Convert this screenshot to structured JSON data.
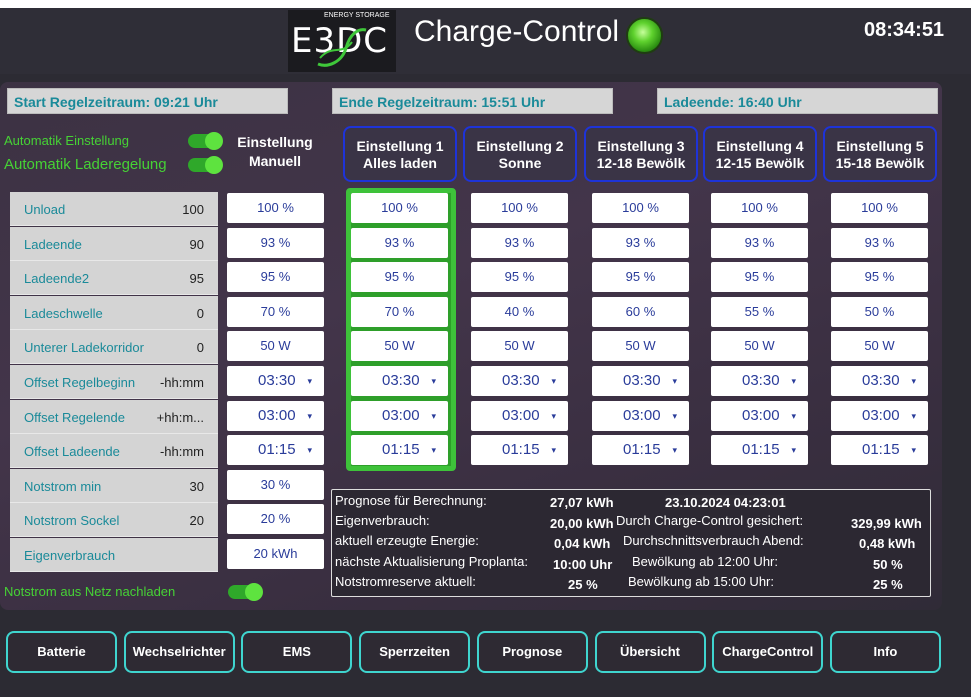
{
  "header": {
    "logo_text": "E3DC",
    "logo_sub": "ENERGY STORAGE",
    "title": "Charge-Control",
    "clock": "08:34:51"
  },
  "status_bar": {
    "start": "Start Regelzeitraum: 09:21 Uhr",
    "end": "Ende Regelzeitraum: 15:51 Uhr",
    "charge_end": "Ladeende: 16:40 Uhr"
  },
  "auto": {
    "setting_label": "Automatik Einstellung",
    "charge_label": "Automatik Laderegelung",
    "setting_on": true,
    "charge_on": true
  },
  "manual_header": [
    "Einstellung",
    "Manuell"
  ],
  "columns": [
    {
      "line1": "Einstellung 1",
      "line2": "Alles laden"
    },
    {
      "line1": "Einstellung 2",
      "line2": "Sonne"
    },
    {
      "line1": "Einstellung 3",
      "line2": "12-18 Bewölk"
    },
    {
      "line1": "Einstellung 4",
      "line2": "12-15 Bewölk"
    },
    {
      "line1": "Einstellung 5",
      "line2": "15-18 Bewölk"
    }
  ],
  "rows": [
    {
      "label": "Unload",
      "value": "100",
      "manual": "100 %",
      "settings": [
        "100 %",
        "100 %",
        "100 %",
        "100 %",
        "100 %"
      ]
    },
    {
      "label": "Ladeende",
      "value": "90",
      "manual": "93 %",
      "settings": [
        "93 %",
        "93 %",
        "93 %",
        "93 %",
        "93 %"
      ]
    },
    {
      "label": "Ladeende2",
      "value": "95",
      "manual": "95 %",
      "settings": [
        "95 %",
        "95 %",
        "95 %",
        "95 %",
        "95 %"
      ]
    },
    {
      "label": "Ladeschwelle",
      "value": "0",
      "manual": "70 %",
      "settings": [
        "70 %",
        "40 %",
        "60 %",
        "55 %",
        "50 %"
      ]
    },
    {
      "label": "Unterer Ladekorridor",
      "value": "0",
      "manual": "50 W",
      "settings": [
        "50 W",
        "50 W",
        "50 W",
        "50 W",
        "50 W"
      ]
    },
    {
      "label": "Offset Regelbeginn",
      "value": "-hh:mm",
      "manual": "03:30",
      "settings": [
        "03:30",
        "03:30",
        "03:30",
        "03:30",
        "03:30"
      ],
      "dropdown": true
    },
    {
      "label": "Offset Regelende",
      "value": "+hh:m...",
      "manual": "03:00",
      "settings": [
        "03:00",
        "03:00",
        "03:00",
        "03:00",
        "03:00"
      ],
      "dropdown": true
    },
    {
      "label": "Offset Ladeende",
      "value": "-hh:mm",
      "manual": "01:15",
      "settings": [
        "01:15",
        "01:15",
        "01:15",
        "01:15",
        "01:15"
      ],
      "dropdown": true
    },
    {
      "label": "Notstrom min",
      "value": "30",
      "manual": "30 %"
    },
    {
      "label": "Notstrom Sockel",
      "value": "20",
      "manual": "20 %"
    },
    {
      "label": "Eigenverbrauch",
      "value": "",
      "manual": "20 kWh"
    }
  ],
  "dropdown_caret": "▾",
  "notstrom_label": "Notstrom aus Netz nachladen",
  "notstrom_on": true,
  "info": {
    "prog_label": "Prognose für Berechnung:",
    "prog_value": "27,07 kWh",
    "date": "23.10.2024 04:23:01",
    "eigen_label": "Eigenverbrauch:",
    "eigen_value": "20,00 kWh",
    "secured_label": "Durch Charge-Control gesichert:",
    "secured_value": "329,99 kWh",
    "erzeugt_label": "aktuell erzeugte Energie:",
    "erzeugt_value": "0,04 kWh",
    "avg_label": "Durchschnittsverbrauch Abend:",
    "avg_value": "0,48 kWh",
    "next_label": "nächste Aktualisierung Proplanta:",
    "next_value": "10:00 Uhr",
    "cloud12_label": "Bewölkung ab 12:00 Uhr:",
    "cloud12_value": "50 %",
    "reserve_label": "Notstromreserve aktuell:",
    "reserve_value": "25 %",
    "cloud15_label": "Bewölkung ab 15:00 Uhr:",
    "cloud15_value": "25 %"
  },
  "nav": [
    "Batterie",
    "Wechselrichter",
    "EMS",
    "Sperrzeiten",
    "Prognose",
    "Übersicht",
    "ChargeControl",
    "Info"
  ],
  "colors": {
    "accent_green": "#46d235",
    "header_border": "#1e33d8",
    "nav_border": "#3fd5cf",
    "label_teal": "#1a8a99"
  }
}
